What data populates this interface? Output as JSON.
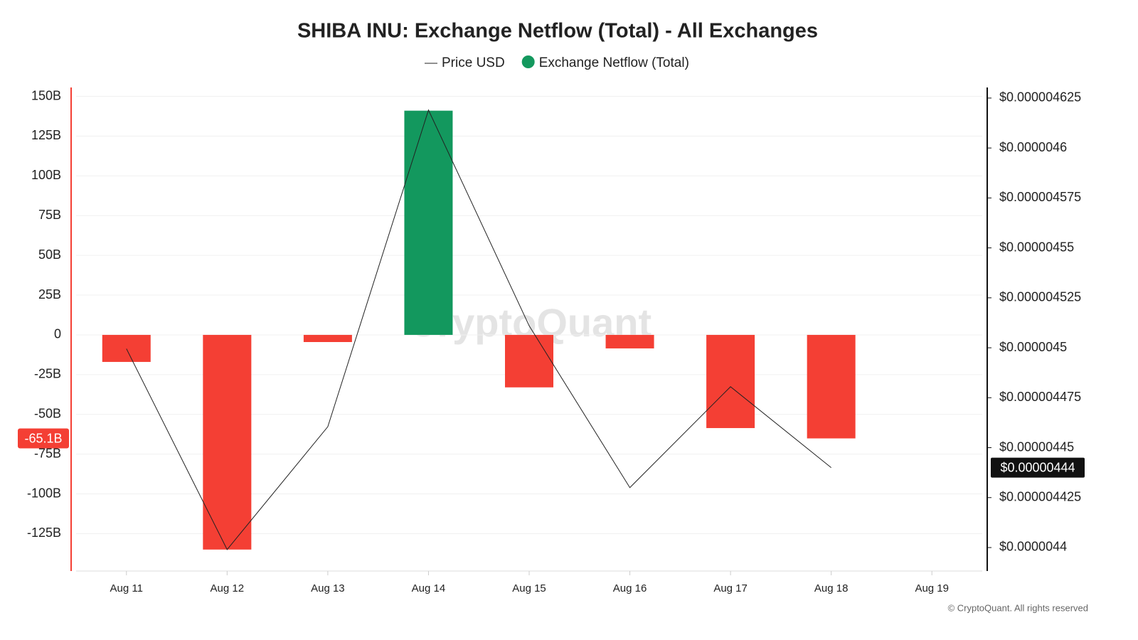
{
  "chart_data": {
    "type": "bar",
    "title": "SHIBA INU: Exchange Netflow (Total) - All Exchanges",
    "watermark": "CryptoQuant",
    "footer": "© CryptoQuant. All rights reserved",
    "categories": [
      "Aug 11",
      "Aug 12",
      "Aug 13",
      "Aug 14",
      "Aug 15",
      "Aug 16",
      "Aug 17",
      "Aug 18",
      "Aug 19"
    ],
    "series": [
      {
        "name": "Price USD",
        "type": "line",
        "axis": "y2",
        "color": "#222222",
        "values": [
          4.4995e-06,
          4.399e-06,
          4.4605e-06,
          4.619e-06,
          4.511e-06,
          4.43e-06,
          4.4805e-06,
          4.44e-06,
          null
        ],
        "value_labels": [
          null,
          null,
          null,
          null,
          null,
          null,
          null,
          "$0.00000444",
          null
        ]
      },
      {
        "name": "Exchange Netflow (Total)",
        "type": "bar",
        "color": "#13985e",
        "negative_color": "#f43f34",
        "values": [
          -17,
          -135,
          -4.5,
          141,
          -33,
          -8.5,
          -58.6,
          -65.1,
          null
        ],
        "value_labels": [
          null,
          null,
          null,
          null,
          null,
          null,
          null,
          "-65.1B",
          null
        ]
      }
    ],
    "ylim": [
      -148.5,
      155.6
    ],
    "yticks": [
      {
        "value": 150,
        "label": "150B"
      },
      {
        "value": 125,
        "label": "125B"
      },
      {
        "value": 100,
        "label": "100B"
      },
      {
        "value": 75,
        "label": "75B"
      },
      {
        "value": 50,
        "label": "50B"
      },
      {
        "value": 25,
        "label": "25B"
      },
      0,
      {
        "value": -25,
        "label": "-25B"
      },
      {
        "value": -50,
        "label": "-50B"
      },
      {
        "value": -75,
        "label": "-75B"
      },
      {
        "value": -100,
        "label": "-100B"
      },
      {
        "value": -125,
        "label": "-125B"
      }
    ],
    "y2lim": [
      4.38825e-06,
      4.6303e-06
    ],
    "y2ticks": [
      {
        "value": 4.625e-06,
        "label": "$0.000004625"
      },
      {
        "value": 4.6e-06,
        "label": "$0.0000046"
      },
      {
        "value": 4.575e-06,
        "label": "$0.000004575"
      },
      {
        "value": 4.55e-06,
        "label": "$0.00000455"
      },
      {
        "value": 4.525e-06,
        "label": "$0.000004525"
      },
      {
        "value": 4.5e-06,
        "label": "$0.0000045"
      },
      {
        "value": 4.475e-06,
        "label": "$0.000004475"
      },
      {
        "value": 4.45e-06,
        "label": "$0.00000445"
      },
      {
        "value": 4.425e-06,
        "label": "$0.000004425"
      },
      {
        "value": 4.4e-06,
        "label": "$0.0000044"
      }
    ],
    "grid": true
  }
}
